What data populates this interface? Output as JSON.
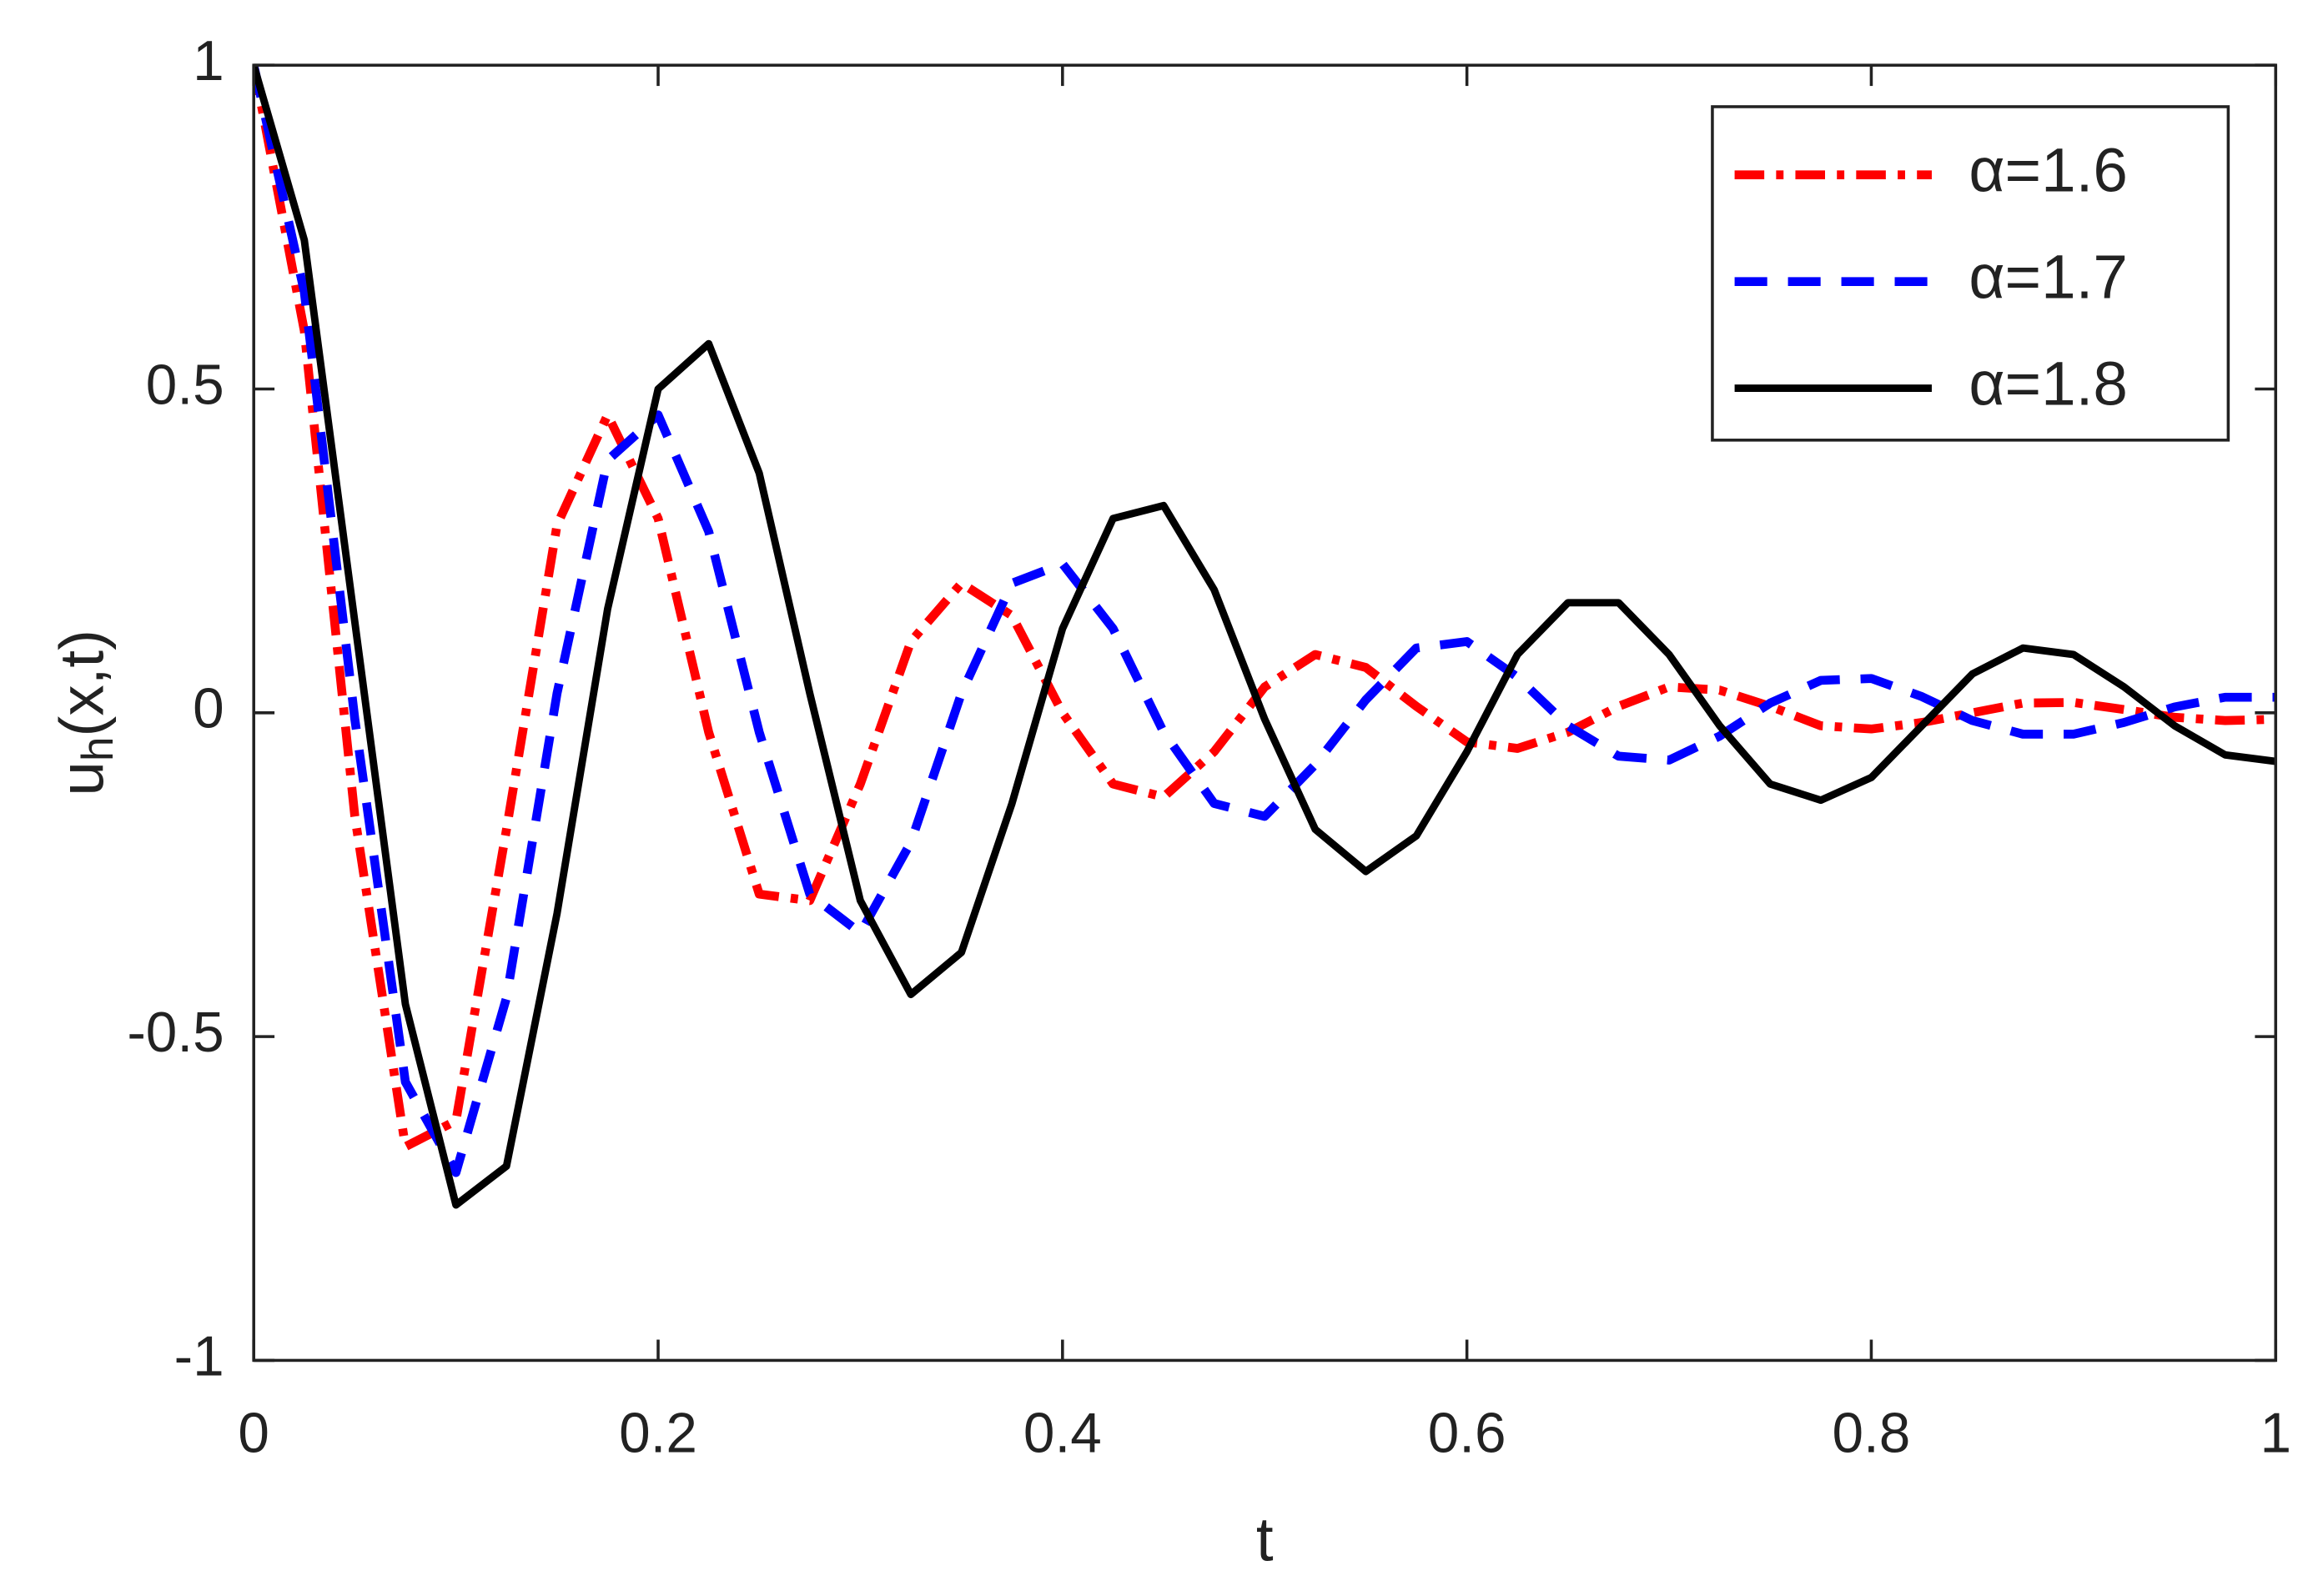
{
  "chart_data": {
    "type": "line",
    "xlabel": "t",
    "ylabel": [
      "u",
      "h",
      "(x,t)"
    ],
    "x": [
      0,
      0.025,
      0.05,
      0.075,
      0.1,
      0.125,
      0.15,
      0.175,
      0.2,
      0.225,
      0.25,
      0.275,
      0.3,
      0.325,
      0.35,
      0.375,
      0.4,
      0.425,
      0.45,
      0.475,
      0.5,
      0.525,
      0.55,
      0.575,
      0.6,
      0.625,
      0.65,
      0.675,
      0.7,
      0.725,
      0.75,
      0.775,
      0.8,
      0.825,
      0.85,
      0.875,
      0.9,
      0.925,
      0.95,
      0.975,
      1
    ],
    "series": [
      {
        "name": "α=1.6",
        "color": "#ff0000",
        "style": "dashdot",
        "values": [
          1,
          0.59,
          -0.16,
          -0.67,
          -0.63,
          -0.18,
          0.29,
          0.46,
          0.3,
          -0.03,
          -0.28,
          -0.29,
          -0.11,
          0.11,
          0.2,
          0.15,
          0.0,
          -0.11,
          -0.13,
          -0.06,
          0.04,
          0.09,
          0.07,
          0.01,
          -0.045,
          -0.055,
          -0.03,
          0.01,
          0.04,
          0.035,
          0.01,
          -0.02,
          -0.025,
          -0.015,
          0.0,
          0.015,
          0.016,
          0.005,
          -0.007,
          -0.012,
          -0.01
        ]
      },
      {
        "name": "α=1.7",
        "color": "#0000ff",
        "style": "dashed",
        "values": [
          1,
          0.65,
          -0.01,
          -0.57,
          -0.71,
          -0.44,
          0.03,
          0.39,
          0.46,
          0.28,
          -0.03,
          -0.28,
          -0.34,
          -0.2,
          0.03,
          0.2,
          0.23,
          0.13,
          -0.03,
          -0.14,
          -0.16,
          -0.08,
          0.02,
          0.1,
          0.11,
          0.055,
          -0.02,
          -0.067,
          -0.073,
          -0.036,
          0.015,
          0.05,
          0.053,
          0.025,
          -0.012,
          -0.033,
          -0.033,
          -0.015,
          0.009,
          0.024,
          0.024
        ]
      },
      {
        "name": "α=1.8",
        "color": "#000000",
        "style": "solid",
        "values": [
          1,
          0.73,
          0.14,
          -0.45,
          -0.76,
          -0.7,
          -0.31,
          0.16,
          0.5,
          0.57,
          0.37,
          0.03,
          -0.29,
          -0.435,
          -0.37,
          -0.14,
          0.13,
          0.3,
          0.32,
          0.19,
          -0.01,
          -0.18,
          -0.245,
          -0.19,
          -0.06,
          0.09,
          0.17,
          0.17,
          0.09,
          -0.02,
          -0.11,
          -0.135,
          -0.1,
          -0.02,
          0.06,
          0.1,
          0.09,
          0.04,
          -0.02,
          -0.065,
          -0.075
        ]
      }
    ],
    "xlim": [
      0,
      1
    ],
    "ylim": [
      -1,
      1
    ],
    "xticks": [
      0,
      0.2,
      0.4,
      0.6,
      0.8,
      1
    ],
    "yticks": [
      -1,
      -0.5,
      0,
      0.5,
      1
    ],
    "grid": false,
    "legend": "upper right"
  }
}
